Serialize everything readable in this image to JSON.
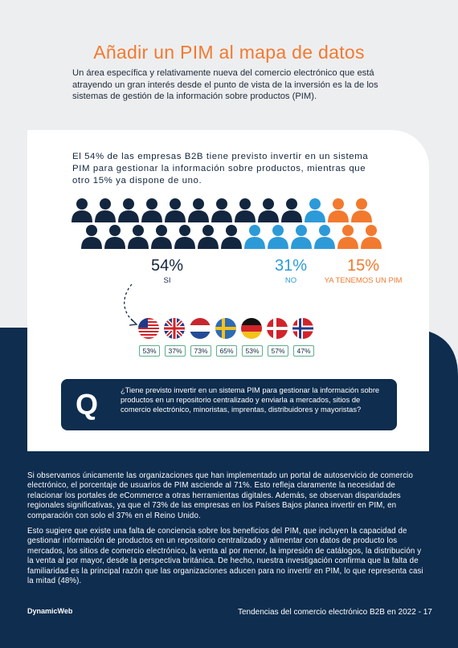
{
  "title": "Añadir un PIM al mapa de datos",
  "intro": "Un área específica y relativamente nueva del comercio electrónico que está atrayendo un gran interés desde el punto de vista de la inversión es la de los sistemas de gestión de la información sobre productos (PIM).",
  "stat_text": "El 54% de las empresas B2B tiene previsto invertir en un sistema PIM para gestionar la información sobre productos, mientras que otro 15% ya dispone de uno.",
  "stats": {
    "si": {
      "value": "54%",
      "label": "SI",
      "color": "#12263f"
    },
    "no": {
      "value": "31%",
      "label": "NO",
      "color": "#2d9ad8"
    },
    "ya": {
      "value": "15%",
      "label": "YA TENEMOS UN PIM",
      "color": "#f27a2f"
    }
  },
  "people_rows": [
    [
      "navy",
      "navy",
      "navy",
      "navy",
      "navy",
      "navy",
      "navy",
      "navy",
      "navy",
      "navy",
      "blue",
      "orange",
      "orange"
    ],
    [
      "navy",
      "navy",
      "navy",
      "navy",
      "navy",
      "navy",
      "navy",
      "blue",
      "blue",
      "blue",
      "blue",
      "orange",
      "orange"
    ]
  ],
  "flags": [
    {
      "country": "us-flag-icon",
      "pct": "53%"
    },
    {
      "country": "uk-flag-icon",
      "pct": "37%"
    },
    {
      "country": "nl-flag-icon",
      "pct": "73%"
    },
    {
      "country": "se-flag-icon",
      "pct": "65%"
    },
    {
      "country": "de-flag-icon",
      "pct": "53%"
    },
    {
      "country": "dk-flag-icon",
      "pct": "57%"
    },
    {
      "country": "no-flag-icon",
      "pct": "47%"
    }
  ],
  "question": {
    "letter": "Q",
    "text": "¿Tiene previsto invertir en un sistema PIM para gestionar la información sobre productos en un repositorio centralizado y enviarla a mercados, sitios de comercio electrónico, minoristas, imprentas, distribuidores y mayoristas?"
  },
  "paragraph1": "Si observamos únicamente las organizaciones que han implementado un portal de autoservicio de comercio electrónico, el porcentaje de usuarios de PIM asciende al 71%. Esto refleja claramente la necesidad de relacionar los portales de eCommerce a otras herramientas digitales. Además, se observan disparidades regionales significativas, ya que el 73% de las empresas en los Países Bajos planea invertir en PIM, en comparación con solo el 37% en el Reino Unido.",
  "paragraph2": "Esto sugiere que existe una falta de conciencia sobre los beneficios del PIM, que incluyen la capacidad de gestionar información de productos en un repositorio centralizado y alimentar con datos de producto los mercados, los sitios de comercio electrónico, la venta al por menor, la impresión de catálogos, la distribución y la venta al por mayor, desde la perspectiva británica. De hecho, nuestra investigación confirma que la falta de familiaridad es la principal razón que las organizaciones aducen para no invertir en PIM, lo que representa casi la mitad (48%).",
  "logo": "DynamicWeb",
  "footer": "Tendencias del comercio electrónico B2B en 2022 -  17",
  "colors": {
    "navy": "#12263f",
    "blue": "#2d9ad8",
    "orange": "#f27a2f",
    "background_navy": "#0f2d4e"
  }
}
